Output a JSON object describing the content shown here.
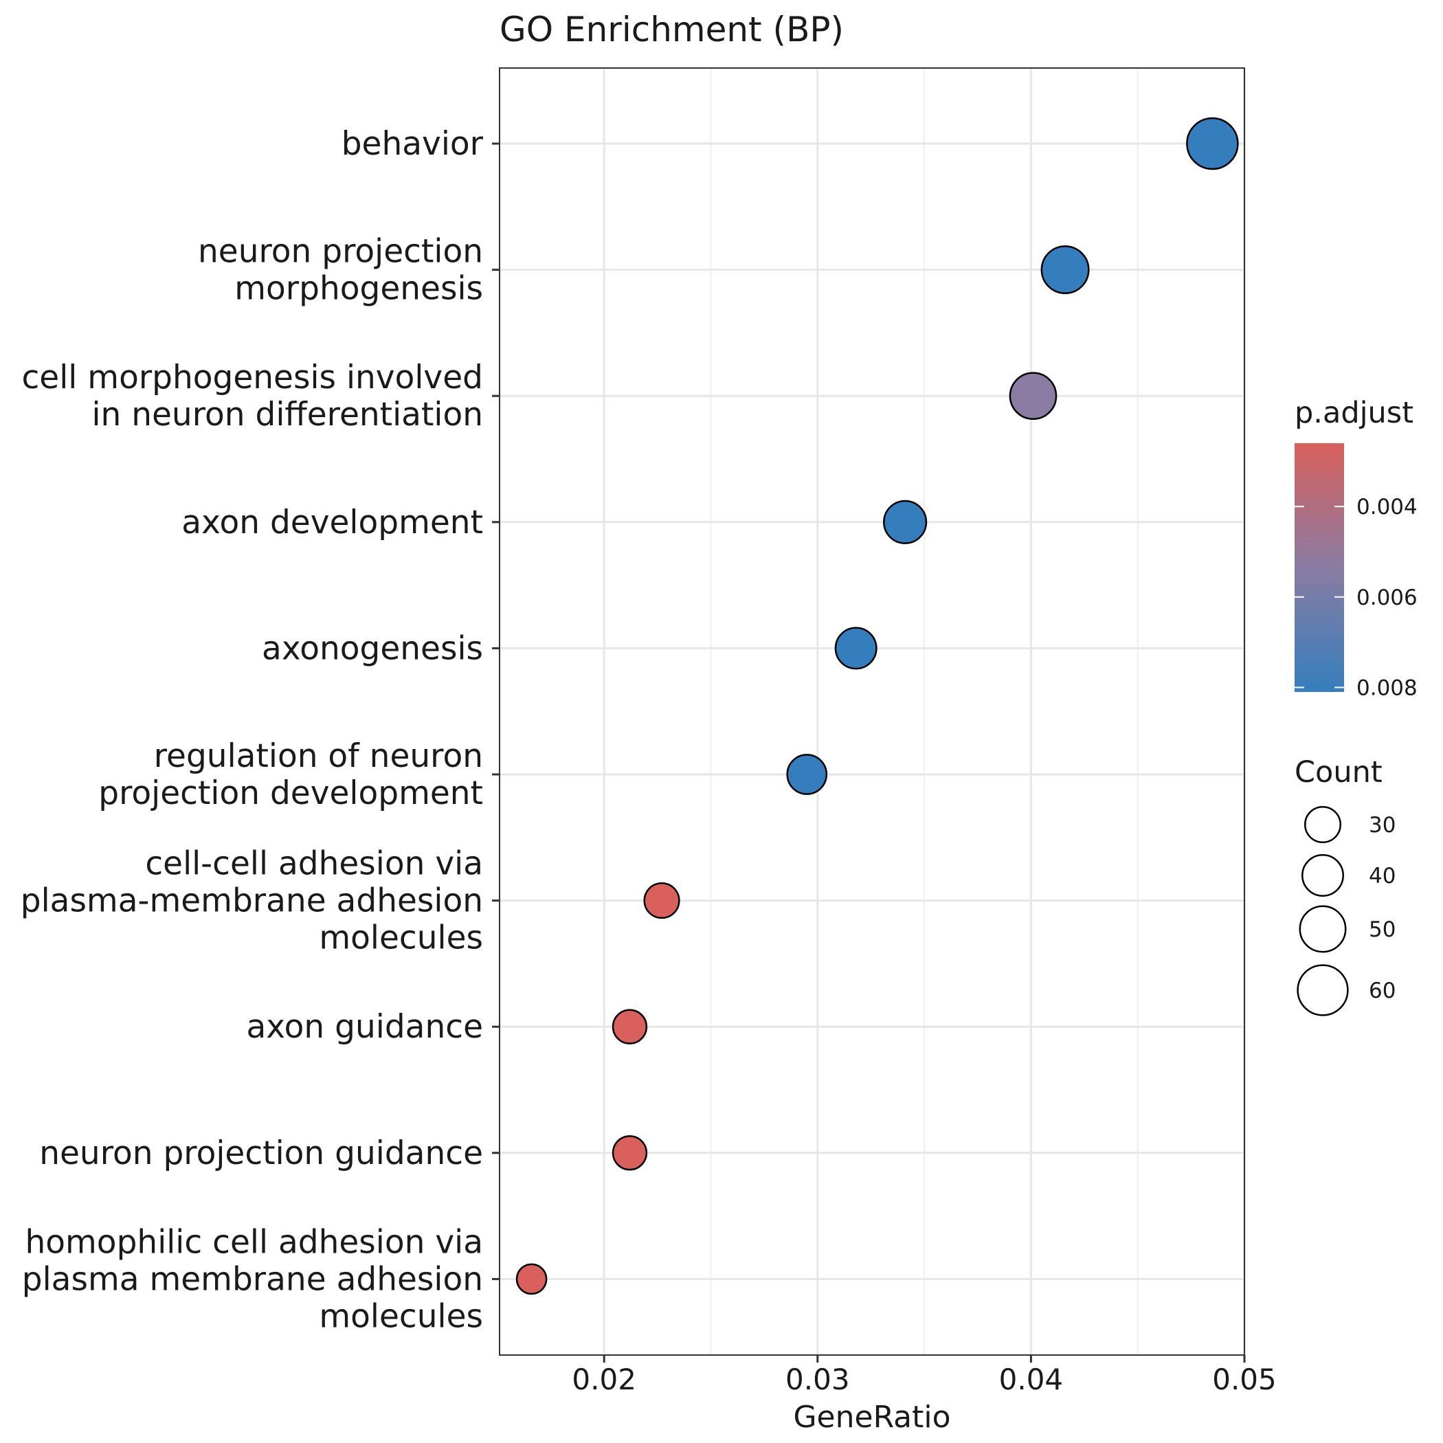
{
  "chart_data": {
    "type": "scatter",
    "title": "GO Enrichment (BP)",
    "xlabel": "GeneRatio",
    "ylabel": "",
    "xlim": [
      0.0151,
      0.05
    ],
    "xticks": [
      "0.02",
      "0.03",
      "0.04",
      "0.05"
    ],
    "xtick_values": [
      0.02,
      0.03,
      0.04,
      0.05
    ],
    "grid": true,
    "legend_position": "right",
    "points": [
      {
        "term": [
          "behavior"
        ],
        "x": 0.0485,
        "count": 62,
        "p_adjust": 0.0081,
        "color": "#357EBD"
      },
      {
        "term": [
          "neuron projection",
          "morphogenesis"
        ],
        "x": 0.0416,
        "count": 53,
        "p_adjust": 0.0081,
        "color": "#357EBD"
      },
      {
        "term": [
          "cell morphogenesis involved",
          "in neuron differentiation"
        ],
        "x": 0.0401,
        "count": 51,
        "p_adjust": 0.0066,
        "color": "#8A7CA2"
      },
      {
        "term": [
          "axon development"
        ],
        "x": 0.0341,
        "count": 43,
        "p_adjust": 0.0081,
        "color": "#357EBD"
      },
      {
        "term": [
          "axonogenesis"
        ],
        "x": 0.0318,
        "count": 40,
        "p_adjust": 0.0081,
        "color": "#357EBD"
      },
      {
        "term": [
          "regulation of neuron",
          "projection development"
        ],
        "x": 0.0295,
        "count": 37,
        "p_adjust": 0.0081,
        "color": "#357EBD"
      },
      {
        "term": [
          "cell-cell adhesion via",
          "plasma-membrane adhesion",
          "molecules"
        ],
        "x": 0.0227,
        "count": 29,
        "p_adjust": 0.0026,
        "color": "#D9605C"
      },
      {
        "term": [
          "axon guidance"
        ],
        "x": 0.0212,
        "count": 27,
        "p_adjust": 0.0026,
        "color": "#D9605C"
      },
      {
        "term": [
          "neuron projection guidance"
        ],
        "x": 0.0212,
        "count": 27,
        "p_adjust": 0.0026,
        "color": "#D9605C"
      },
      {
        "term": [
          "homophilic cell adhesion via",
          "plasma membrane adhesion",
          "molecules"
        ],
        "x": 0.0166,
        "count": 21,
        "p_adjust": 0.0026,
        "color": "#D9605C"
      }
    ],
    "color_legend": {
      "title": "p.adjust",
      "low_color": "#D9605C",
      "mid_color": "#8A7CA2",
      "high_color": "#357EBD",
      "range": [
        0.0026,
        0.0081
      ],
      "ticks": [
        "0.004",
        "0.006",
        "0.008"
      ],
      "tick_values": [
        0.004,
        0.006,
        0.008
      ]
    },
    "size_legend": {
      "title": "Count",
      "labels": [
        "30",
        "40",
        "50",
        "60"
      ],
      "values": [
        30,
        40,
        50,
        60
      ]
    }
  }
}
